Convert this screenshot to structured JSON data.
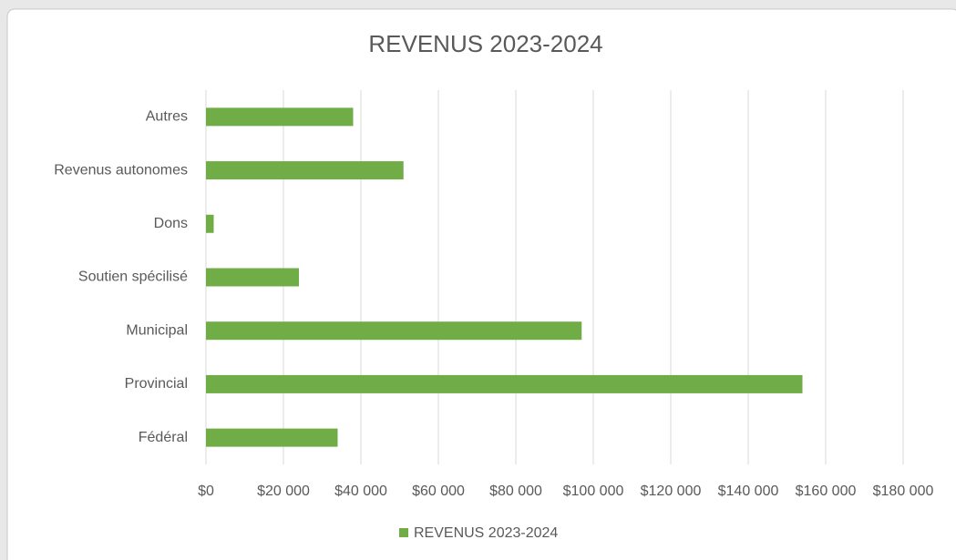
{
  "chart_data": {
    "type": "barh",
    "title": "REVENUS 2023-2024",
    "categories": [
      "Autres",
      "Revenus autonomes",
      "Dons",
      "Soutien spécilisé",
      "Municipal",
      "Provincial",
      "Fédéral"
    ],
    "series": [
      {
        "name": "REVENUS 2023-2024",
        "color": "#70ad47",
        "values": [
          38000,
          51000,
          2000,
          24000,
          97000,
          154000,
          34000
        ]
      }
    ],
    "xlim": [
      0,
      180000
    ],
    "xticks": [
      {
        "value": 0,
        "label": "$0"
      },
      {
        "value": 20000,
        "label": "$20 000"
      },
      {
        "value": 40000,
        "label": "$40 000"
      },
      {
        "value": 60000,
        "label": "$60 000"
      },
      {
        "value": 80000,
        "label": "$80 000"
      },
      {
        "value": 100000,
        "label": "$100 000"
      },
      {
        "value": 120000,
        "label": "$120 000"
      },
      {
        "value": 140000,
        "label": "$140 000"
      },
      {
        "value": 160000,
        "label": "$160 000"
      },
      {
        "value": 180000,
        "label": "$180 000"
      }
    ],
    "grid": true,
    "legend": "bottom"
  }
}
